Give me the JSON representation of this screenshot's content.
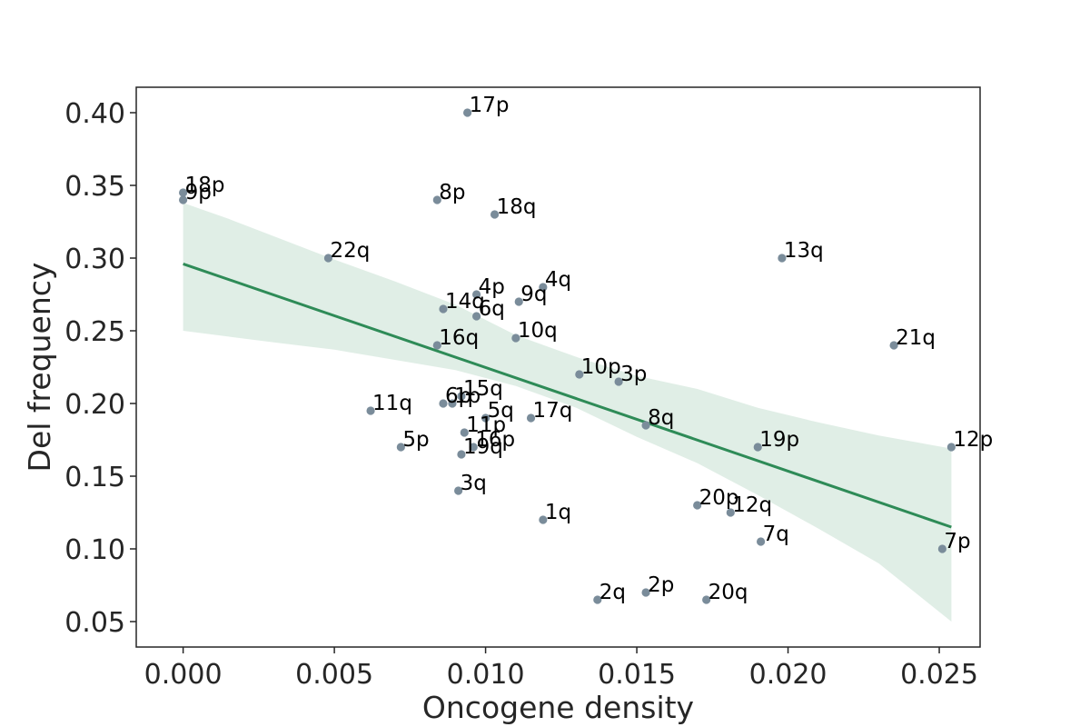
{
  "chart_data": {
    "type": "scatter",
    "title": "",
    "xlabel": "Oncogene density",
    "ylabel": "Del frequency",
    "xlim": [
      -0.00155,
      0.02635
    ],
    "ylim": [
      0.0325,
      0.4175
    ],
    "xticks": [
      0.0,
      0.005,
      0.01,
      0.015,
      0.02,
      0.025
    ],
    "xtick_labels": [
      "0.000",
      "0.005",
      "0.010",
      "0.015",
      "0.020",
      "0.025"
    ],
    "yticks": [
      0.05,
      0.1,
      0.15,
      0.2,
      0.25,
      0.3,
      0.35,
      0.4
    ],
    "ytick_labels": [
      "0.05",
      "0.10",
      "0.15",
      "0.20",
      "0.25",
      "0.30",
      "0.35",
      "0.40"
    ],
    "grid": false,
    "colors": {
      "points": "#7a8c9a",
      "regression_line": "#2e8b57",
      "confidence_band": "#2e8b57",
      "axis": "#262626"
    },
    "points": [
      {
        "label": "17p",
        "x": 0.0094,
        "y": 0.4
      },
      {
        "label": "18p",
        "x": 0.0,
        "y": 0.345
      },
      {
        "label": "9p",
        "x": 0.0,
        "y": 0.34
      },
      {
        "label": "8p",
        "x": 0.0084,
        "y": 0.34
      },
      {
        "label": "18q",
        "x": 0.0103,
        "y": 0.33
      },
      {
        "label": "22q",
        "x": 0.0048,
        "y": 0.3
      },
      {
        "label": "13q",
        "x": 0.0198,
        "y": 0.3
      },
      {
        "label": "4q",
        "x": 0.0119,
        "y": 0.28
      },
      {
        "label": "4p",
        "x": 0.0097,
        "y": 0.275
      },
      {
        "label": "9q",
        "x": 0.0111,
        "y": 0.27
      },
      {
        "label": "14q",
        "x": 0.0086,
        "y": 0.265
      },
      {
        "label": "6q",
        "x": 0.0097,
        "y": 0.26
      },
      {
        "label": "10q",
        "x": 0.011,
        "y": 0.245
      },
      {
        "label": "16q",
        "x": 0.0084,
        "y": 0.24
      },
      {
        "label": "21q",
        "x": 0.0235,
        "y": 0.24
      },
      {
        "label": "10p",
        "x": 0.0131,
        "y": 0.22
      },
      {
        "label": "3p",
        "x": 0.0144,
        "y": 0.215
      },
      {
        "label": "15q",
        "x": 0.0092,
        "y": 0.205
      },
      {
        "label": "6p",
        "x": 0.0086,
        "y": 0.2
      },
      {
        "label": "1p",
        "x": 0.0089,
        "y": 0.2
      },
      {
        "label": "11q",
        "x": 0.0062,
        "y": 0.195
      },
      {
        "label": "5q",
        "x": 0.01,
        "y": 0.19
      },
      {
        "label": "17q",
        "x": 0.0115,
        "y": 0.19
      },
      {
        "label": "8q",
        "x": 0.0153,
        "y": 0.185
      },
      {
        "label": "11p",
        "x": 0.0093,
        "y": 0.18
      },
      {
        "label": "5p",
        "x": 0.0072,
        "y": 0.17
      },
      {
        "label": "16p",
        "x": 0.0096,
        "y": 0.17
      },
      {
        "label": "19q",
        "x": 0.0092,
        "y": 0.165
      },
      {
        "label": "19p",
        "x": 0.019,
        "y": 0.17
      },
      {
        "label": "12p",
        "x": 0.0254,
        "y": 0.17
      },
      {
        "label": "3q",
        "x": 0.0091,
        "y": 0.14
      },
      {
        "label": "20p",
        "x": 0.017,
        "y": 0.13
      },
      {
        "label": "12q",
        "x": 0.0181,
        "y": 0.125
      },
      {
        "label": "1q",
        "x": 0.0119,
        "y": 0.12
      },
      {
        "label": "7q",
        "x": 0.0191,
        "y": 0.105
      },
      {
        "label": "7p",
        "x": 0.0251,
        "y": 0.1
      },
      {
        "label": "2p",
        "x": 0.0153,
        "y": 0.07
      },
      {
        "label": "2q",
        "x": 0.0137,
        "y": 0.065
      },
      {
        "label": "20q",
        "x": 0.0173,
        "y": 0.065
      }
    ],
    "regression": {
      "x": [
        0.0,
        0.0254
      ],
      "y": [
        0.296,
        0.115
      ]
    },
    "confidence_band": {
      "x": [
        0.0,
        0.0015,
        0.003,
        0.005,
        0.007,
        0.009,
        0.011,
        0.013,
        0.015,
        0.017,
        0.019,
        0.021,
        0.023,
        0.0254
      ],
      "upper": [
        0.338,
        0.327,
        0.315,
        0.299,
        0.284,
        0.268,
        0.247,
        0.232,
        0.219,
        0.21,
        0.197,
        0.187,
        0.178,
        0.169
      ],
      "lower": [
        0.25,
        0.246,
        0.242,
        0.237,
        0.23,
        0.223,
        0.212,
        0.197,
        0.177,
        0.159,
        0.137,
        0.114,
        0.09,
        0.05
      ]
    }
  }
}
